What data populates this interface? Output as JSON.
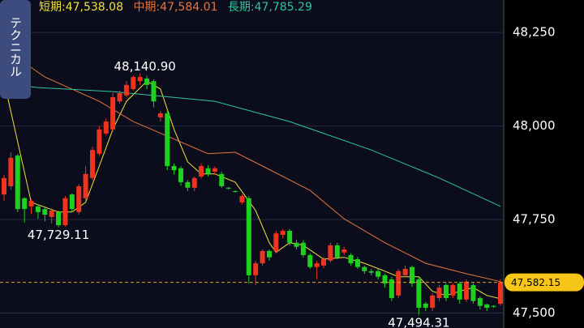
{
  "ui": {
    "tab": "テクニカル"
  },
  "chart_data": {
    "type": "candlestick",
    "ylim": [
      47460,
      48337
    ],
    "yticks": [
      {
        "value": 48250,
        "label": "48,250"
      },
      {
        "value": 48000,
        "label": "48,000"
      },
      {
        "value": 47750,
        "label": "47,750"
      },
      {
        "value": 47500,
        "label": "47,500"
      }
    ],
    "grid": true,
    "up_color": "#f0331e",
    "down_color": "#1fd11f",
    "open": [
      47817,
      47839,
      47921,
      47807,
      47785,
      47785,
      47778,
      47757,
      47770,
      47735,
      47817,
      47770,
      47807,
      47861,
      47926,
      47980,
      47991,
      48066,
      48082,
      48099,
      48120,
      48127,
      48120,
      48023,
      48034,
      47893,
      47887,
      47850,
      47835,
      47865,
      47887,
      47878,
      47872,
      47835,
      47826,
      47796,
      47807,
      47601,
      47633,
      47666,
      47666,
      47709,
      47720,
      47688,
      47688,
      47655,
      47623,
      47627,
      47640,
      47681,
      47662,
      47655,
      47644,
      47623,
      47612,
      47612,
      47601,
      47590,
      47547,
      47601,
      47623,
      47590,
      47525,
      47514,
      47540,
      47575,
      47547,
      47579,
      47536,
      47575,
      47540,
      47523,
      47519,
      47525
    ],
    "high": [
      47870,
      47930,
      47925,
      47810,
      47805,
      47790,
      47785,
      47780,
      47774,
      47813,
      47820,
      47845,
      47893,
      47945,
      48000,
      48020,
      48088,
      48095,
      48120,
      48135,
      48140.9,
      48135,
      48125,
      48040,
      48040,
      47900,
      47893,
      47855,
      47865,
      47900,
      47895,
      47892,
      47878,
      47837,
      47828,
      47817,
      47813,
      47640,
      47670,
      47670,
      47720,
      47725,
      47725,
      47695,
      47695,
      47660,
      47640,
      47650,
      47688,
      47688,
      47677,
      47660,
      47650,
      47627,
      47618,
      47618,
      47605,
      47597,
      47618,
      47627,
      47627,
      47597,
      47530,
      47552,
      47575,
      47580,
      47580,
      47584,
      47590,
      47580,
      47545,
      47525,
      47521,
      47590
    ],
    "low": [
      47800,
      47830,
      47770,
      47742,
      47765,
      47752,
      47745,
      47740,
      47729.11,
      47731,
      47770,
      47763,
      47800,
      47855,
      47920,
      47975,
      47985,
      48060,
      48077,
      48095,
      48110,
      48099,
      48050,
      48012,
      47882,
      47870,
      47840,
      47826,
      47826,
      47860,
      47865,
      47870,
      47835,
      47830,
      47822,
      47790,
      47579,
      47575,
      47627,
      47640,
      47660,
      47700,
      47681,
      47670,
      47649,
      47618,
      47590,
      47620,
      47635,
      47644,
      47655,
      47627,
      47618,
      47605,
      47601,
      47590,
      47568,
      47532,
      47540,
      47595,
      47570,
      47494.31,
      47505,
      47505,
      47532,
      47532,
      47540,
      47525,
      47530,
      47525,
      47510,
      47505,
      47514,
      47520
    ],
    "close": [
      47861,
      47915,
      47778,
      47778,
      47800,
      47770,
      47763,
      47774,
      47735,
      47807,
      47778,
      47839,
      47872,
      47936,
      47991,
      48012,
      48077,
      48088,
      48110,
      48131,
      48131,
      48110,
      48066,
      48034,
      47893,
      47882,
      47850,
      47835,
      47861,
      47893,
      47872,
      47887,
      47839,
      47833,
      47824,
      47813,
      47601,
      47633,
      47666,
      47649,
      47713,
      47720,
      47688,
      47677,
      47655,
      47623,
      47633,
      47644,
      47681,
      47649,
      47670,
      47633,
      47623,
      47612,
      47608,
      47597,
      47579,
      47540,
      47612,
      47618,
      47579,
      47514,
      47514,
      47547,
      47568,
      47540,
      47575,
      47536,
      47584,
      47532,
      47519,
      47514,
      47517,
      47582.15
    ],
    "series": [
      {
        "name": "短期:",
        "color": "#f2e23a",
        "last_value": 47538.08,
        "last_value_label": "47,538.08",
        "x": [
          0,
          4,
          8,
          10,
          12,
          14,
          16,
          18,
          21,
          23,
          25,
          27,
          29,
          31,
          34,
          37,
          39,
          40,
          42,
          44,
          47,
          50,
          53,
          56,
          58,
          61,
          63,
          65,
          67,
          69,
          71,
          73
        ],
        "values": [
          48120,
          47796,
          47770,
          47770,
          47796,
          47893,
          47991,
          48066,
          48120,
          48099,
          47991,
          47904,
          47872,
          47872,
          47850,
          47774,
          47688,
          47662,
          47688,
          47681,
          47644,
          47649,
          47633,
          47612,
          47597,
          47597,
          47558,
          47547,
          47558,
          47568,
          47547,
          47538.08
        ]
      },
      {
        "name": "中期:",
        "color": "#e8743a",
        "last_value": 47584.01,
        "last_value_label": "47,584.01",
        "x": [
          0,
          6,
          14,
          19,
          24,
          30,
          34,
          38,
          45,
          50,
          56,
          62,
          68,
          73
        ],
        "values": [
          48207,
          48131,
          48066,
          48012,
          47973,
          47926,
          47930,
          47893,
          47828,
          47752,
          47688,
          47633,
          47605,
          47584.01
        ]
      },
      {
        "name": "長期:",
        "color": "#2fc79a",
        "last_value": 47785.29,
        "last_value_label": "47,785.29",
        "x": [
          0,
          5,
          16,
          31,
          42,
          54,
          64,
          73
        ],
        "values": [
          48114,
          48103,
          48092,
          48066,
          48012,
          47936,
          47861,
          47785.29
        ]
      }
    ],
    "annotations": [
      {
        "text": "48,140.90",
        "value": 48140.9,
        "index": 20
      },
      {
        "text": "47,729.11",
        "value": 47729.11,
        "index": 8
      },
      {
        "text": "47,494.31",
        "value": 47494.31,
        "index": 61
      }
    ],
    "current": {
      "value": 47582.15,
      "label": "47,582.15"
    }
  }
}
